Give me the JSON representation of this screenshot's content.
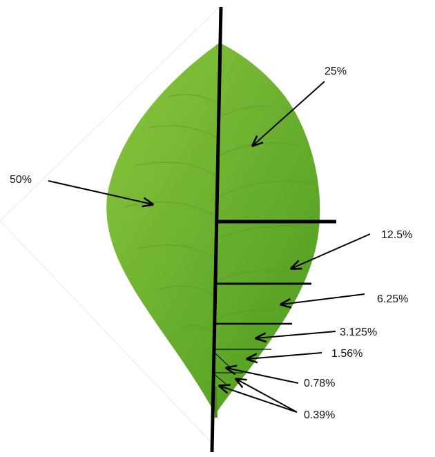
{
  "diagram": {
    "labels": {
      "half": "50%",
      "quarter": "25%",
      "eighth": "12.5%",
      "sixteenth": "6.25%",
      "thirty_second": "3.125%",
      "sixty_fourth": "1.56%",
      "one_twenty_eighth": "0.78%",
      "two_fifty_sixth": "0.39%"
    },
    "colors": {
      "leaf_light": "#8cc63f",
      "leaf_dark": "#4a9a1e",
      "vein": "#5b8f2a",
      "line": "#000000"
    }
  }
}
